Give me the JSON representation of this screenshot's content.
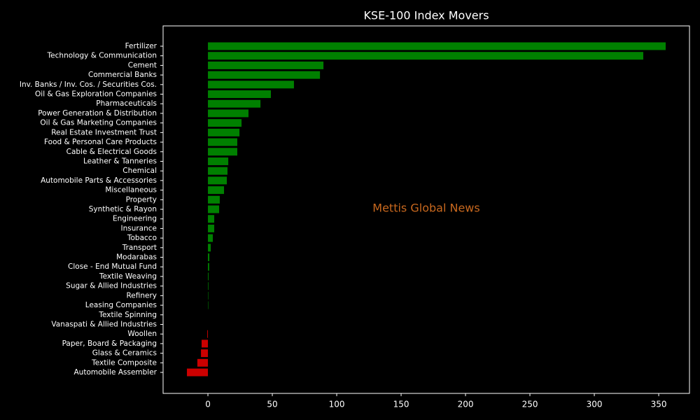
{
  "chart_data": {
    "type": "barh",
    "title": "KSE-100 Index Movers",
    "annotation": "Mettis Global News",
    "annotation_color": "#c8681e",
    "color": "#008000",
    "negative_color": "#cc0000",
    "categories": [
      "Fertilizer",
      "Technology & Communication",
      "Cement",
      "Commercial Banks",
      "Inv. Banks / Inv. Cos. / Securities Cos.",
      "Oil & Gas Exploration Companies",
      "Pharmaceuticals",
      "Power Generation & Distribution",
      "Oil & Gas Marketing Companies",
      "Real Estate Investment Trust",
      "Food & Personal Care Products",
      "Cable & Electrical Goods",
      "Leather & Tanneries",
      "Chemical",
      "Automobile Parts & Accessories",
      "Miscellaneous",
      "Property",
      "Synthetic & Rayon",
      "Engineering",
      "Insurance",
      "Tobacco",
      "Transport",
      "Modarabas",
      "Close - End Mutual Fund",
      "Textile Weaving",
      "Sugar & Allied Industries",
      "Refinery",
      "Leasing Companies",
      "Textile Spinning",
      "Vanaspati & Allied Industries",
      "Woollen",
      "Paper, Board & Packaging",
      "Glass & Ceramics",
      "Textile Composite",
      "Automobile Assembler"
    ],
    "values": [
      355.4,
      338,
      89.7,
      87,
      66.8,
      48.9,
      40.8,
      31.5,
      26.1,
      24.5,
      22.8,
      22.8,
      15.8,
      15.2,
      14.7,
      12.5,
      9.2,
      8.7,
      4.9,
      4.9,
      3.8,
      2.2,
      1.1,
      1,
      0.5,
      0.4,
      0.3,
      0.3,
      0,
      0,
      -0.5,
      -4.9,
      -5.4,
      -8.2,
      -16.3
    ],
    "xlim": [
      -34.8,
      373.9
    ],
    "xticks": [
      0,
      50,
      100,
      150,
      200,
      250,
      300,
      350
    ]
  }
}
